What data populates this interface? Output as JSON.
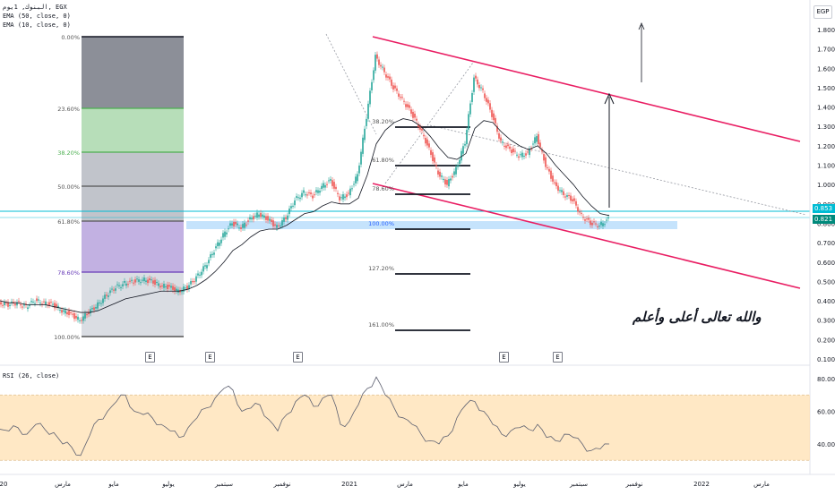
{
  "legend": {
    "symbol": "البنوك, 1يوم, EGX",
    "ema50": "EMA (50, close, 0)",
    "ema10": "EMA (10, close, 0)"
  },
  "currency": "EGP",
  "price_tags": {
    "upper": "0.853",
    "lower": "0.821"
  },
  "rsi_title": "RSI (26, close)",
  "earnings_marker": "E",
  "annotation_text": "والله تعالى أعلى وأعلم",
  "colors": {
    "up": "#26a69a",
    "down": "#ef5350",
    "channel": "#e91e63",
    "ema": "#131722",
    "rsi_line": "#7e57c2",
    "rsi_band": "#ffe0b2",
    "cyan_line": "#00bcd4",
    "zone": "#bbdefb"
  },
  "chart_data": [
    {
      "type": "line",
      "title": "البنوك, 1يوم, EGX",
      "y_axis": {
        "ticks": [
          "1.800",
          "1.700",
          "1.600",
          "1.500",
          "1.400",
          "1.300",
          "1.200",
          "1.100",
          "1.000",
          "0.900",
          "0.800",
          "0.700",
          "0.600",
          "0.500",
          "0.400",
          "0.300",
          "0.200",
          "0.100"
        ],
        "range": [
          0.1,
          1.85
        ]
      },
      "x_axis": {
        "ticks": [
          "20",
          "مارس",
          "مايو",
          "يوليو",
          "سبتمبر",
          "نوفمبر",
          "2021",
          "مارس",
          "مايو",
          "يوليو",
          "سبتمبر",
          "نوفمبر",
          "2022",
          "مارس"
        ]
      },
      "series": [
        {
          "name": "",
          "x": [
            0,
            10,
            20,
            30,
            40,
            50,
            60,
            70,
            80,
            90,
            100,
            110,
            120,
            130,
            140,
            150,
            160,
            170,
            180,
            190,
            200,
            210,
            220,
            230,
            240,
            250,
            260,
            270,
            280,
            290,
            300,
            310,
            320,
            330,
            340,
            350,
            360,
            370,
            380,
            390,
            400,
            410,
            420,
            430,
            440,
            450,
            460,
            470,
            480,
            490,
            500,
            510,
            520,
            530,
            540,
            550,
            560,
            570,
            580,
            590,
            600,
            610,
            620,
            630,
            640,
            650,
            660,
            670,
            680
          ],
          "y": [
            0.39,
            0.38,
            0.39,
            0.37,
            0.4,
            0.39,
            0.38,
            0.35,
            0.33,
            0.3,
            0.34,
            0.38,
            0.43,
            0.47,
            0.49,
            0.5,
            0.51,
            0.5,
            0.48,
            0.47,
            0.45,
            0.47,
            0.52,
            0.58,
            0.66,
            0.74,
            0.8,
            0.78,
            0.82,
            0.85,
            0.82,
            0.78,
            0.83,
            0.92,
            0.96,
            0.94,
            0.99,
            1.02,
            0.93,
            0.95,
            1.05,
            1.35,
            1.66,
            1.58,
            1.5,
            1.44,
            1.37,
            1.29,
            1.18,
            1.06,
            1.0,
            1.08,
            1.22,
            1.55,
            1.48,
            1.36,
            1.22,
            1.18,
            1.15,
            1.16,
            1.25,
            1.1,
            1.0,
            0.95,
            0.92,
            0.84,
            0.8,
            0.79,
            0.82
          ]
        }
      ],
      "ema50_values": [
        0.4,
        0.39,
        0.39,
        0.38,
        0.38,
        0.38,
        0.37,
        0.36,
        0.35,
        0.34,
        0.34,
        0.35,
        0.37,
        0.39,
        0.41,
        0.42,
        0.43,
        0.44,
        0.45,
        0.45,
        0.45,
        0.46,
        0.48,
        0.51,
        0.55,
        0.6,
        0.66,
        0.69,
        0.73,
        0.76,
        0.77,
        0.77,
        0.79,
        0.82,
        0.85,
        0.86,
        0.89,
        0.91,
        0.9,
        0.9,
        0.93,
        1.05,
        1.21,
        1.28,
        1.32,
        1.34,
        1.33,
        1.3,
        1.25,
        1.19,
        1.14,
        1.13,
        1.16,
        1.29,
        1.33,
        1.32,
        1.27,
        1.23,
        1.2,
        1.18,
        1.2,
        1.16,
        1.1,
        1.05,
        1.0,
        0.94,
        0.89,
        0.85,
        0.84
      ],
      "fibonacci_left": [
        "0.00%",
        "23.60%",
        "38.20%",
        "50.00%",
        "61.80%",
        "78.60%",
        "100.00%"
      ],
      "fibonacci_right": [
        "38.20%",
        "61.80%",
        "78.60%",
        "100.00%",
        "127.20%",
        "161.00%"
      ]
    },
    {
      "type": "line",
      "title": "RSI (26, close)",
      "y_axis": {
        "ticks": [
          "80.00",
          "60.00",
          "40.00"
        ],
        "band": [
          30,
          70
        ]
      },
      "series": [
        {
          "name": "",
          "x": [
            0,
            10,
            20,
            30,
            40,
            50,
            60,
            70,
            80,
            90,
            100,
            110,
            120,
            130,
            140,
            150,
            160,
            170,
            180,
            190,
            200,
            210,
            220,
            230,
            240,
            250,
            260,
            270,
            280,
            290,
            300,
            310,
            320,
            330,
            340,
            350,
            360,
            370,
            380,
            390,
            400,
            410,
            420,
            430,
            440,
            450,
            460,
            470,
            480,
            490,
            500,
            510,
            520,
            530,
            540,
            550,
            560,
            570,
            580,
            590,
            600,
            610,
            620,
            630,
            640,
            650,
            660,
            670,
            680
          ],
          "y": [
            49,
            48,
            50,
            46,
            52,
            49,
            47,
            40,
            38,
            33,
            45,
            55,
            60,
            66,
            70,
            60,
            58,
            56,
            52,
            48,
            44,
            50,
            56,
            62,
            68,
            74,
            73,
            60,
            62,
            64,
            55,
            48,
            58,
            66,
            70,
            63,
            68,
            70,
            52,
            54,
            64,
            74,
            81,
            70,
            62,
            56,
            52,
            46,
            42,
            40,
            45,
            56,
            64,
            66,
            60,
            52,
            46,
            48,
            50,
            49,
            52,
            44,
            42,
            46,
            44,
            40,
            36,
            37,
            40
          ]
        }
      ]
    }
  ]
}
